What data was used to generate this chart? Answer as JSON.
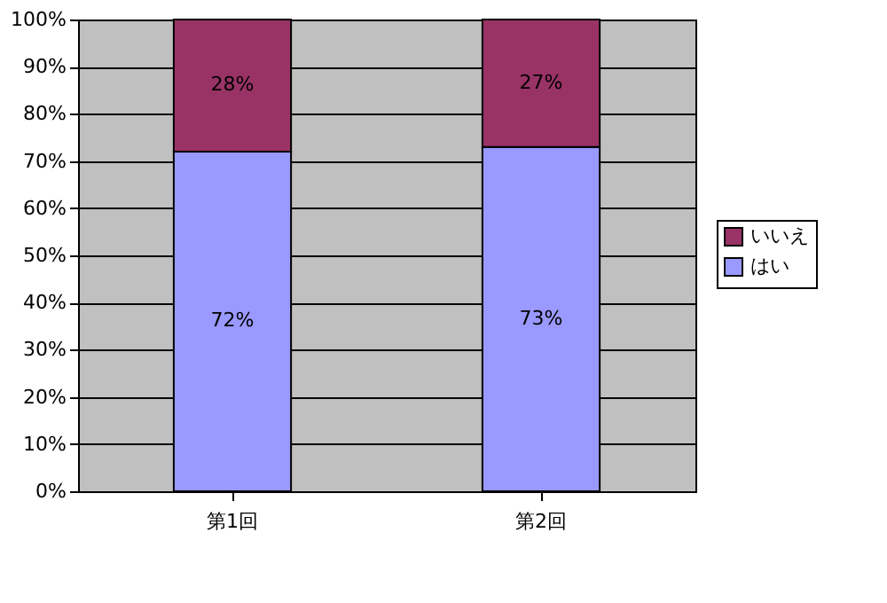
{
  "chart_data": {
    "type": "bar",
    "stacked": true,
    "categories": [
      "第1回",
      "第2回"
    ],
    "series": [
      {
        "name": "はい",
        "color": "#9999ff",
        "values": [
          72,
          73
        ],
        "value_labels": [
          "72%",
          "73%"
        ]
      },
      {
        "name": "いいえ",
        "color": "#993366",
        "values": [
          28,
          27
        ],
        "value_labels": [
          "28%",
          "27%"
        ]
      }
    ],
    "ylim": [
      0,
      100
    ],
    "yticks": [
      {
        "value": 0,
        "label": "0%"
      },
      {
        "value": 10,
        "label": "10%"
      },
      {
        "value": 20,
        "label": "20%"
      },
      {
        "value": 30,
        "label": "30%"
      },
      {
        "value": 40,
        "label": "40%"
      },
      {
        "value": 50,
        "label": "50%"
      },
      {
        "value": 60,
        "label": "60%"
      },
      {
        "value": 70,
        "label": "70%"
      },
      {
        "value": 80,
        "label": "80%"
      },
      {
        "value": 90,
        "label": "90%"
      },
      {
        "value": 100,
        "label": "100%"
      }
    ],
    "grid": "y",
    "legend": "right"
  }
}
